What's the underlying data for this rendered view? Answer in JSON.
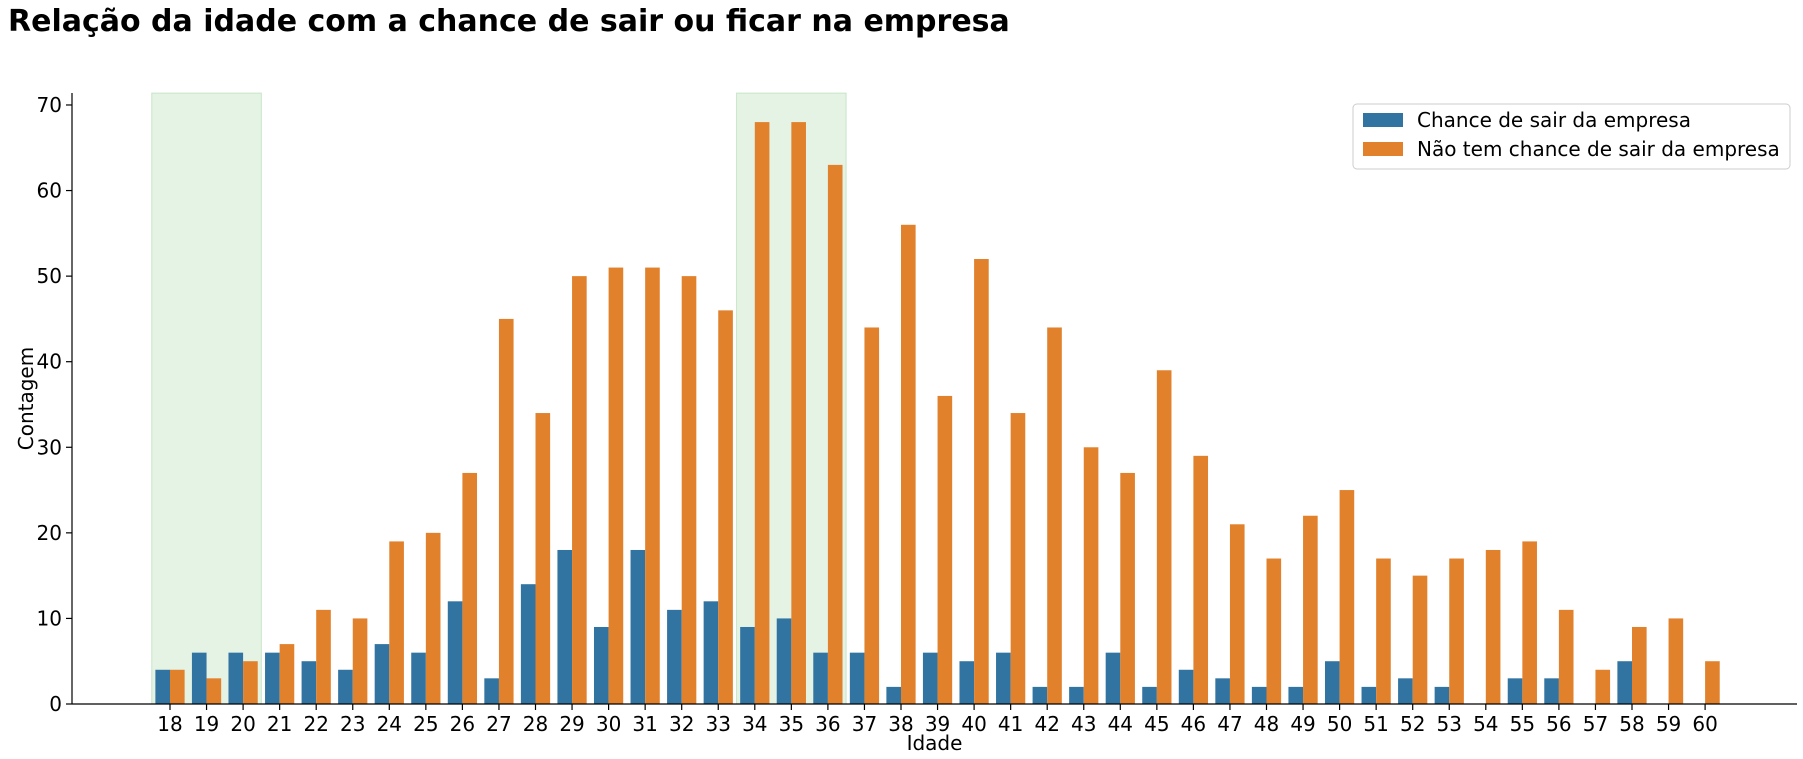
{
  "chart_data": {
    "type": "bar",
    "title": "Relação da idade com a chance de sair ou ficar na empresa",
    "xlabel": "Idade",
    "ylabel": "Contagem",
    "ylim": [
      0,
      71.4
    ],
    "yticks": [
      0,
      10,
      20,
      30,
      40,
      50,
      60,
      70
    ],
    "grid": false,
    "legend_position": "top-right",
    "categories": [
      "18",
      "19",
      "20",
      "21",
      "22",
      "23",
      "24",
      "25",
      "26",
      "27",
      "28",
      "29",
      "30",
      "31",
      "32",
      "33",
      "34",
      "35",
      "36",
      "37",
      "38",
      "39",
      "40",
      "41",
      "42",
      "43",
      "44",
      "45",
      "46",
      "47",
      "48",
      "49",
      "50",
      "51",
      "52",
      "53",
      "54",
      "55",
      "56",
      "57",
      "58",
      "59",
      "60"
    ],
    "series": [
      {
        "name": "Chance de sair da empresa",
        "color": "#3274a1",
        "values": [
          4,
          6,
          6,
          6,
          5,
          4,
          7,
          6,
          12,
          3,
          14,
          18,
          9,
          18,
          11,
          12,
          9,
          10,
          6,
          6,
          2,
          6,
          5,
          6,
          2,
          2,
          6,
          2,
          4,
          3,
          2,
          2,
          5,
          2,
          3,
          2,
          0,
          3,
          3,
          0,
          5,
          0,
          0
        ]
      },
      {
        "name": "Não tem chance de sair da empresa",
        "color": "#e1812c",
        "values": [
          4,
          3,
          5,
          7,
          11,
          10,
          19,
          20,
          27,
          45,
          34,
          50,
          51,
          51,
          50,
          46,
          68,
          68,
          63,
          44,
          56,
          36,
          52,
          34,
          44,
          30,
          27,
          39,
          29,
          21,
          17,
          22,
          25,
          17,
          15,
          17,
          18,
          19,
          11,
          4,
          9,
          10,
          5
        ]
      }
    ],
    "highlight_ranges": [
      {
        "from": "18",
        "to": "20",
        "color": "#2ca02c"
      },
      {
        "from": "34",
        "to": "36",
        "color": "#2ca02c"
      }
    ]
  }
}
